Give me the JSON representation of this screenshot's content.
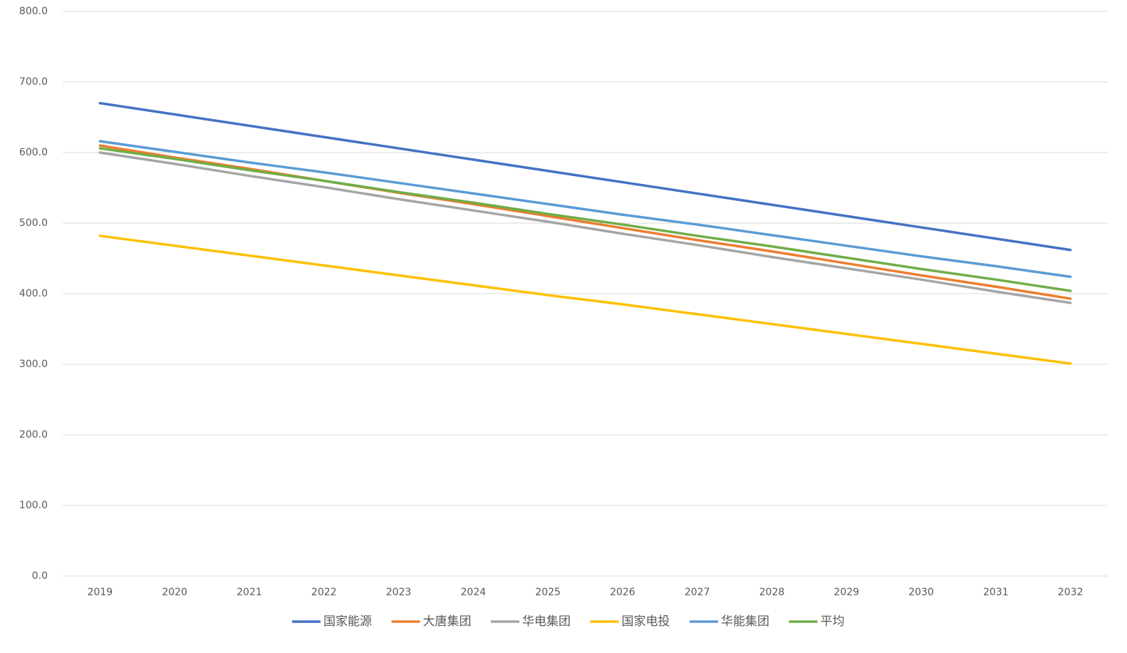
{
  "chart_data": {
    "type": "line",
    "categories": [
      "2019",
      "2020",
      "2021",
      "2022",
      "2023",
      "2024",
      "2025",
      "2026",
      "2027",
      "2028",
      "2029",
      "2030",
      "2031",
      "2032"
    ],
    "series": [
      {
        "name": "国家能源",
        "color": "#4472c4",
        "values": [
          670,
          654,
          638,
          622,
          606,
          590,
          574,
          558,
          542,
          526,
          510,
          494,
          478,
          462
        ]
      },
      {
        "name": "大唐集团",
        "color": "#ed7d31",
        "values": [
          610,
          593,
          577,
          560,
          543,
          527,
          510,
          493,
          476,
          460,
          443,
          426,
          410,
          393
        ]
      },
      {
        "name": "华电集团",
        "color": "#a5a5a5",
        "values": [
          600,
          584,
          567,
          551,
          534,
          518,
          502,
          485,
          469,
          452,
          436,
          420,
          403,
          387
        ]
      },
      {
        "name": "国家电投",
        "color": "#ffc000",
        "values": [
          482,
          468,
          454,
          440,
          426,
          412,
          398,
          385,
          371,
          357,
          343,
          329,
          315,
          301
        ]
      },
      {
        "name": "华能集团",
        "color": "#5b9bd5",
        "values": [
          616,
          601,
          586,
          572,
          557,
          542,
          527,
          512,
          498,
          483,
          468,
          453,
          439,
          424
        ]
      },
      {
        "name": "平均",
        "color": "#70ad47",
        "values": [
          606,
          591,
          575,
          560,
          544,
          529,
          513,
          498,
          482,
          467,
          451,
          435,
          420,
          404
        ]
      }
    ],
    "ylim": [
      0,
      800
    ],
    "yticks": [
      {
        "value": 0,
        "label": "0.0"
      },
      {
        "value": 100,
        "label": "100.0"
      },
      {
        "value": 200,
        "label": "200.0"
      },
      {
        "value": 300,
        "label": "300.0"
      },
      {
        "value": 400,
        "label": "400.0"
      },
      {
        "value": 500,
        "label": "500.0"
      },
      {
        "value": 600,
        "label": "600.0"
      },
      {
        "value": 700,
        "label": "700.0"
      },
      {
        "value": 800,
        "label": "800.0"
      }
    ],
    "grid": true,
    "legend": "bottom"
  }
}
